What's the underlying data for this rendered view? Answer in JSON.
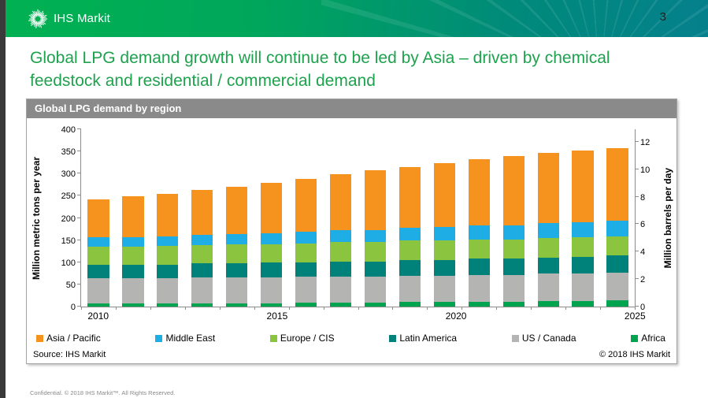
{
  "header": {
    "brand": "IHS Markit",
    "page_number": "3"
  },
  "headline": "Global LPG demand growth will continue to be led by Asia – driven by chemical feedstock and residential / commercial demand",
  "card": {
    "title": "Global LPG demand by region",
    "source": "Source: IHS Markit",
    "copyright": "© 2018 IHS Markit"
  },
  "footer": "Confidential. © 2018 IHS Markit™. All Rights Reserved.",
  "chart_data": {
    "type": "bar",
    "stacked": true,
    "title": "Global LPG demand by region",
    "x": [
      2010,
      2011,
      2012,
      2013,
      2014,
      2015,
      2016,
      2017,
      2018,
      2019,
      2020,
      2021,
      2022,
      2023,
      2024,
      2025
    ],
    "x_tick_labels": [
      "2010",
      "2015",
      "2020",
      "2025"
    ],
    "left_axis": {
      "label": "Million metric tons per year",
      "ticks": [
        0,
        50,
        100,
        150,
        200,
        250,
        300,
        350,
        400
      ],
      "max": 400
    },
    "right_axis": {
      "label": "Million barrels per day",
      "ticks": [
        0,
        2,
        4,
        6,
        8,
        10,
        12
      ],
      "tons_per_mbd": 31
    },
    "grid": false,
    "legend_position": "bottom",
    "series": [
      {
        "name": "Africa",
        "color": "#00a44f",
        "values": [
          7,
          7,
          7,
          8,
          8,
          8,
          9,
          9,
          9,
          10,
          10,
          11,
          11,
          12,
          13,
          14
        ]
      },
      {
        "name": "US / Canada",
        "color": "#b4b4b2",
        "values": [
          57,
          57,
          57,
          57,
          58,
          58,
          58,
          59,
          59,
          60,
          60,
          61,
          61,
          62,
          62,
          63
        ]
      },
      {
        "name": "Latin America",
        "color": "#00827a",
        "values": [
          31,
          31,
          31,
          32,
          32,
          33,
          33,
          34,
          34,
          35,
          35,
          36,
          36,
          37,
          37,
          38
        ]
      },
      {
        "name": "Europe / CIS",
        "color": "#8bc540",
        "values": [
          41,
          41,
          42,
          42,
          42,
          42,
          43,
          43,
          43,
          44,
          44,
          44,
          44,
          44,
          44,
          44
        ]
      },
      {
        "name": "Middle East",
        "color": "#1eade4",
        "values": [
          20,
          21,
          22,
          23,
          24,
          25,
          26,
          27,
          28,
          29,
          30,
          31,
          32,
          33,
          34,
          35
        ]
      },
      {
        "name": "Asia / Pacific",
        "color": "#f6921e",
        "values": [
          86,
          92,
          95,
          102,
          106,
          114,
          119,
          126,
          134,
          137,
          145,
          149,
          155,
          158,
          162,
          163
        ]
      }
    ],
    "legend_order_note": "legend displays series top-to-bottom of stack: Asia / Pacific, Middle East, Europe / CIS, Latin America, US / Canada, Africa"
  }
}
